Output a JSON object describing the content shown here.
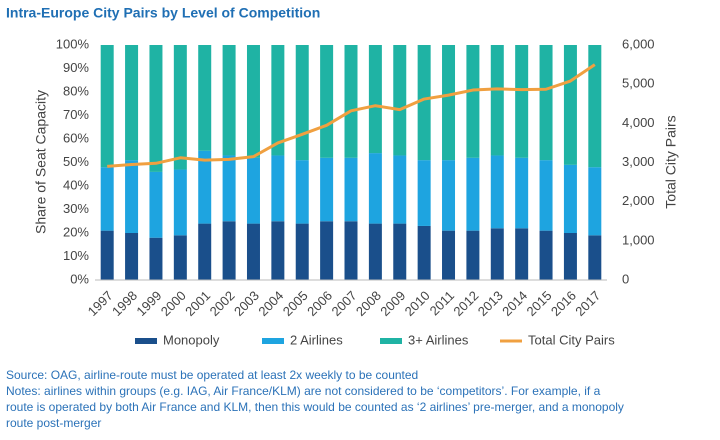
{
  "chart_data": {
    "type": "bar",
    "stacked": true,
    "title": "Intra-Europe City Pairs by Level of Competition",
    "y_label": "Share of Seat Capacity",
    "y2_label": "Total City Pairs",
    "categories": [
      "1997",
      "1998",
      "1999",
      "2000",
      "2001",
      "2002",
      "2003",
      "2004",
      "2005",
      "2006",
      "2007",
      "2008",
      "2009",
      "2010",
      "2011",
      "2012",
      "2013",
      "2014",
      "2015",
      "2016",
      "2017"
    ],
    "series": [
      {
        "name": "Monopoly",
        "color": "#1a4f8b",
        "values": [
          21,
          20,
          18,
          19,
          24,
          25,
          24,
          25,
          24,
          25,
          25,
          24,
          24,
          23,
          21,
          21,
          22,
          22,
          21,
          20,
          19
        ]
      },
      {
        "name": "2 Airlines",
        "color": "#1ea4e0",
        "values": [
          27,
          31,
          28,
          28,
          31,
          28,
          28,
          28,
          27,
          27,
          27,
          30,
          29,
          28,
          30,
          31,
          31,
          30,
          30,
          29,
          29
        ]
      },
      {
        "name": "3+ Airlines",
        "color": "#1fb3a4",
        "values": [
          52,
          49,
          54,
          53,
          45,
          47,
          48,
          47,
          49,
          48,
          48,
          46,
          47,
          49,
          49,
          48,
          47,
          48,
          49,
          51,
          52
        ]
      },
      {
        "name": "Total City Pairs",
        "color": "#f0a040",
        "type": "line",
        "axis": "y2",
        "values": [
          2900,
          2950,
          2980,
          3120,
          3060,
          3080,
          3150,
          3500,
          3720,
          3950,
          4320,
          4450,
          4350,
          4620,
          4720,
          4850,
          4880,
          4860,
          4870,
          5080,
          5500
        ]
      }
    ],
    "ylim": [
      0,
      100
    ],
    "yticks": [
      {
        "value": 0,
        "label": "0%"
      },
      {
        "value": 10,
        "label": "10%"
      },
      {
        "value": 20,
        "label": "20%"
      },
      {
        "value": 30,
        "label": "30%"
      },
      {
        "value": 40,
        "label": "40%"
      },
      {
        "value": 50,
        "label": "50%"
      },
      {
        "value": 60,
        "label": "60%"
      },
      {
        "value": 70,
        "label": "70%"
      },
      {
        "value": 80,
        "label": "80%"
      },
      {
        "value": 90,
        "label": "90%"
      },
      {
        "value": 100,
        "label": "100%"
      }
    ],
    "y2lim": [
      0,
      6000
    ],
    "y2ticks": [
      0,
      {
        "value": 1000,
        "label": "1,000"
      },
      {
        "value": 2000,
        "label": "2,000"
      },
      {
        "value": 3000,
        "label": "3,000"
      },
      {
        "value": 4000,
        "label": "4,000"
      },
      {
        "value": 5000,
        "label": "5,000"
      },
      {
        "value": 6000,
        "label": "6,000"
      }
    ],
    "legend": "bottom",
    "source": "Source: OAG, airline-route must be operated at least 2x weekly to be counted",
    "notes": [
      "Notes: airlines within groups (e.g. IAG, Air France/KLM) are not considered to be ‘competitors’. For example, if a",
      "route is operated by both Air France and KLM, then this would be counted as ‘2 airlines’ pre-merger, and a monopoly",
      "route post-merger"
    ]
  }
}
